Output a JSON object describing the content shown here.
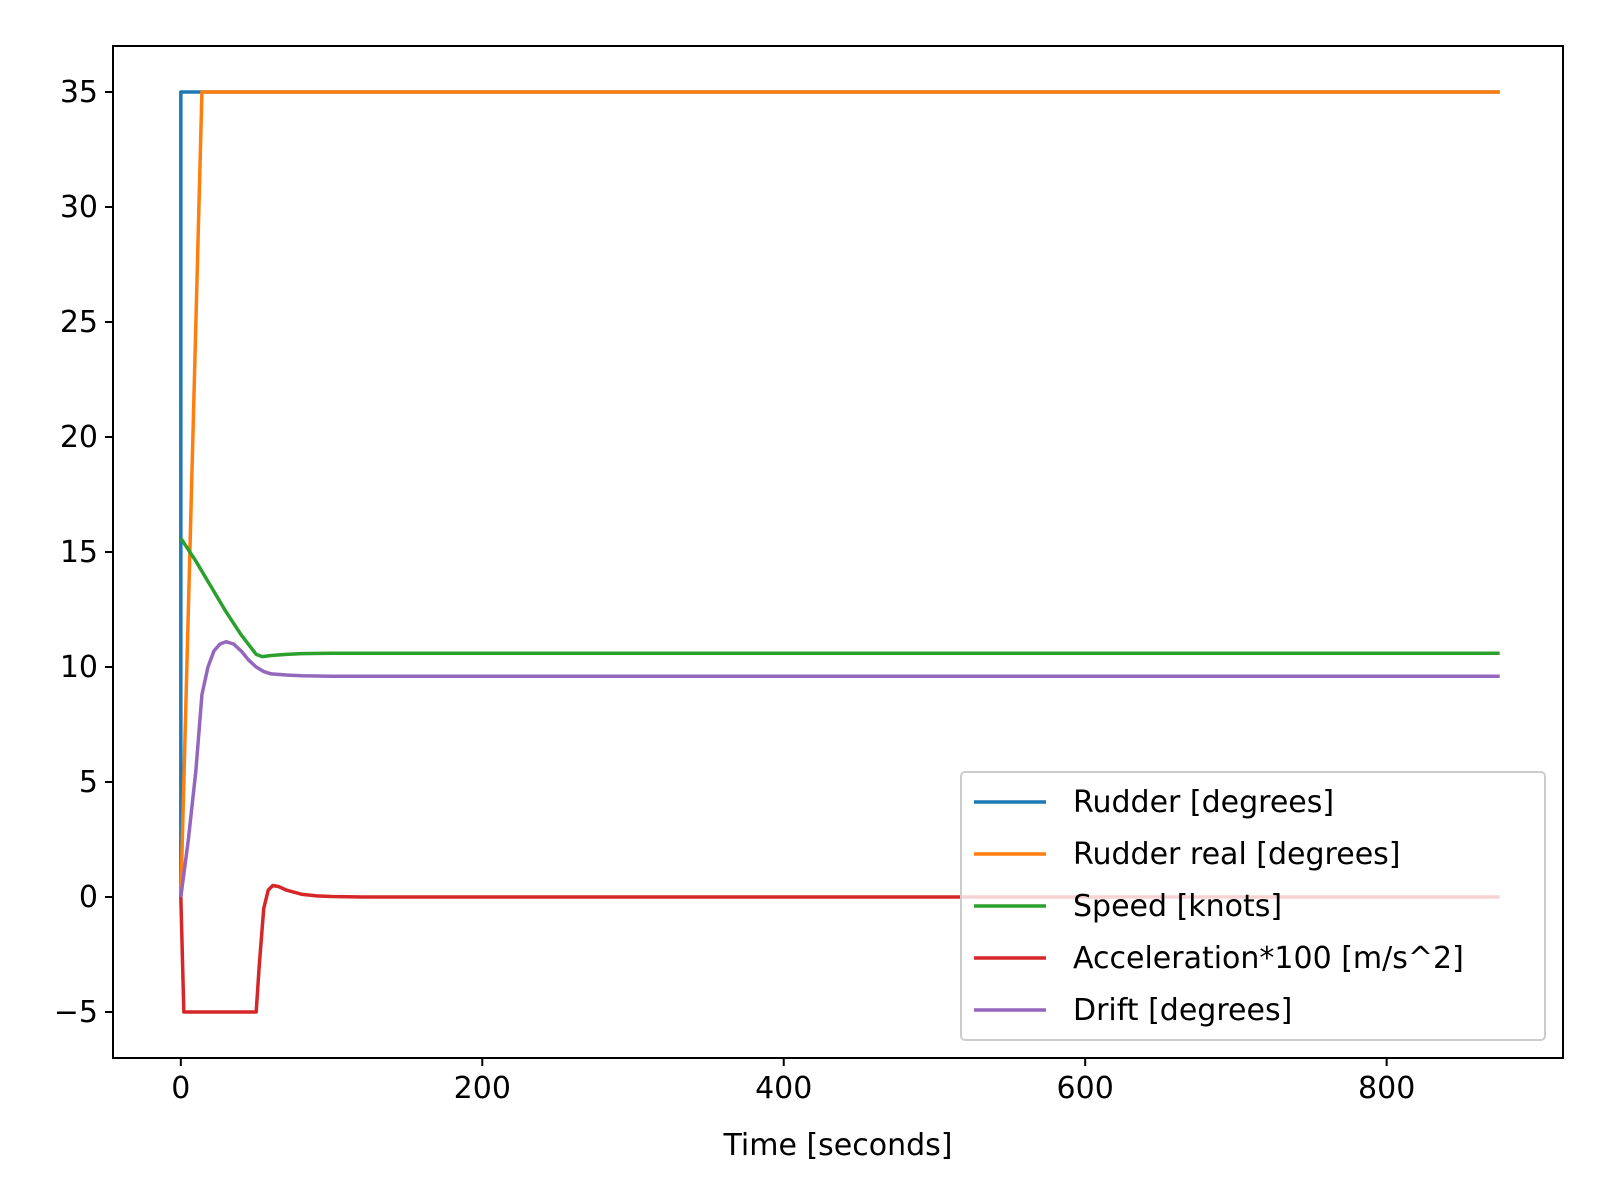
{
  "chart_data": {
    "type": "line",
    "title": "",
    "xlabel": "Time [seconds]",
    "ylabel": "",
    "xlim": [
      -45,
      917
    ],
    "ylim": [
      -7,
      37
    ],
    "xticks": [
      0,
      200,
      400,
      600,
      800
    ],
    "yticks": [
      -5,
      0,
      5,
      10,
      15,
      20,
      25,
      30,
      35
    ],
    "xtick_labels": [
      "0",
      "200",
      "400",
      "600",
      "800"
    ],
    "ytick_labels": [
      "−5",
      "0",
      "5",
      "10",
      "15",
      "20",
      "25",
      "30",
      "35"
    ],
    "grid": false,
    "legend_position": "lower-right",
    "series": [
      {
        "name": "Rudder [degrees]",
        "color": "#1f77b4",
        "x": [
          0,
          0,
          875
        ],
        "y": [
          0,
          35,
          35
        ]
      },
      {
        "name": "Rudder real [degrees]",
        "color": "#ff7f0e",
        "x": [
          0,
          14,
          875
        ],
        "y": [
          0,
          35,
          35
        ]
      },
      {
        "name": "Speed [knots]",
        "color": "#2ca02c",
        "x": [
          0,
          10,
          20,
          30,
          40,
          50,
          54,
          60,
          70,
          80,
          100,
          150,
          300,
          875
        ],
        "y": [
          15.6,
          14.6,
          13.5,
          12.4,
          11.4,
          10.55,
          10.45,
          10.5,
          10.55,
          10.58,
          10.6,
          10.6,
          10.6,
          10.6
        ]
      },
      {
        "name": "Acceleration*100 [m/s^2]",
        "color": "#d62728",
        "x": [
          0,
          2,
          50,
          52,
          55,
          58,
          61,
          65,
          70,
          80,
          90,
          100,
          120,
          875
        ],
        "y": [
          0,
          -5,
          -5,
          -3,
          -0.5,
          0.3,
          0.5,
          0.45,
          0.3,
          0.12,
          0.05,
          0.02,
          0.0,
          0.0
        ]
      },
      {
        "name": "Drift [degrees]",
        "color": "#9467bd",
        "x": [
          0,
          5,
          10,
          14,
          18,
          22,
          26,
          30,
          35,
          40,
          45,
          50,
          55,
          60,
          70,
          80,
          100,
          150,
          875
        ],
        "y": [
          0,
          2.5,
          5.5,
          8.8,
          10.0,
          10.7,
          11.0,
          11.1,
          11.0,
          10.7,
          10.3,
          10.0,
          9.8,
          9.7,
          9.65,
          9.62,
          9.6,
          9.6,
          9.6
        ]
      }
    ]
  }
}
